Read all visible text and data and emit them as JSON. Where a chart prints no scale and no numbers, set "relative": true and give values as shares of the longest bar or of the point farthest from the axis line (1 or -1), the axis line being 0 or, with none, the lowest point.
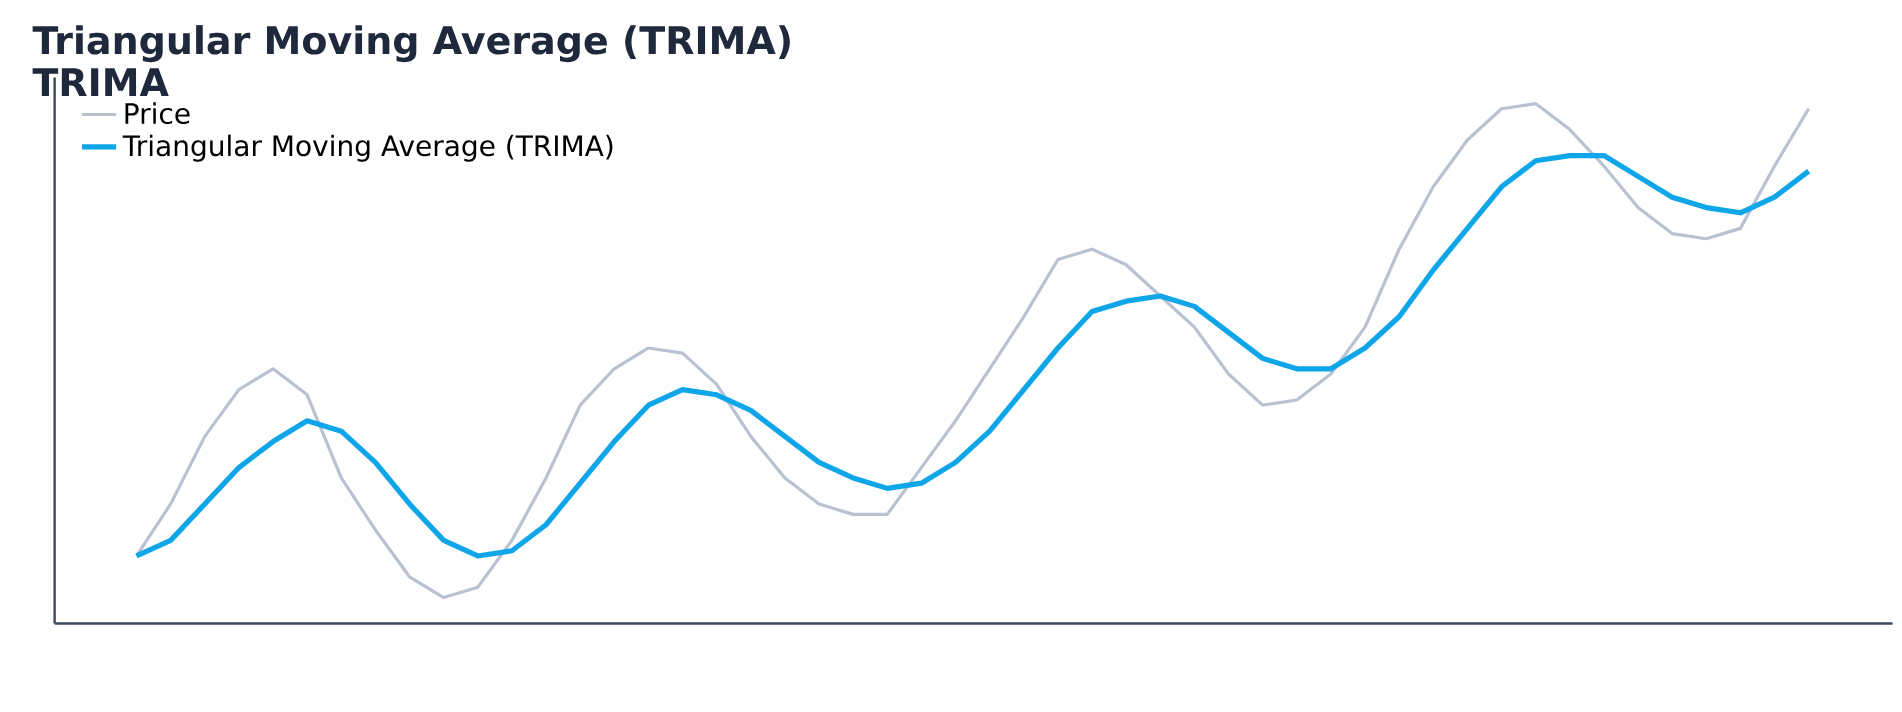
{
  "chart_data": {
    "type": "line",
    "title": "Triangular Moving Average (TRIMA)",
    "subtitle": "TRIMA",
    "relative": true,
    "legend": "top left",
    "marker": "none",
    "line_style": "solid",
    "categories": [
      null,
      null,
      null,
      null,
      null,
      null,
      null,
      null,
      null,
      null,
      null,
      null,
      null,
      null,
      null,
      null,
      null,
      null,
      null,
      null,
      null,
      null,
      null,
      null,
      null,
      null,
      null,
      null,
      null,
      null,
      null,
      null,
      null,
      null,
      null,
      null,
      null,
      null,
      null,
      null,
      null,
      null,
      null,
      null,
      null,
      null,
      null,
      null,
      null,
      null
    ],
    "series": [
      {
        "name": "Price",
        "color": "#b8c2d0",
        "values": [
          0.13,
          0.23,
          0.36,
          0.45,
          0.49,
          0.44,
          0.28,
          0.18,
          0.09,
          0.05,
          0.07,
          0.16,
          0.28,
          0.42,
          0.49,
          0.53,
          0.52,
          0.46,
          0.36,
          0.28,
          0.23,
          0.21,
          0.21,
          0.3,
          0.39,
          0.49,
          0.59,
          0.7,
          0.72,
          0.69,
          0.63,
          0.57,
          0.48,
          0.42,
          0.43,
          0.48,
          0.57,
          0.72,
          0.84,
          0.93,
          0.99,
          1.0,
          0.95,
          0.88,
          0.8,
          0.75,
          0.74,
          0.76,
          0.88,
          0.99
        ]
      },
      {
        "name": "Triangular Moving Average (TRIMA)",
        "color": "#0ea5e9",
        "values": [
          0.13,
          0.16,
          0.23,
          0.3,
          0.35,
          0.39,
          0.37,
          0.31,
          0.23,
          0.16,
          0.13,
          0.14,
          0.19,
          0.27,
          0.35,
          0.42,
          0.45,
          0.44,
          0.41,
          0.36,
          0.31,
          0.28,
          0.26,
          0.27,
          0.31,
          0.37,
          0.45,
          0.53,
          0.6,
          0.62,
          0.63,
          0.61,
          0.56,
          0.51,
          0.49,
          0.49,
          0.53,
          0.59,
          0.68,
          0.76,
          0.84,
          0.89,
          0.9,
          0.9,
          0.86,
          0.82,
          0.8,
          0.79,
          0.82,
          0.87
        ]
      }
    ]
  }
}
